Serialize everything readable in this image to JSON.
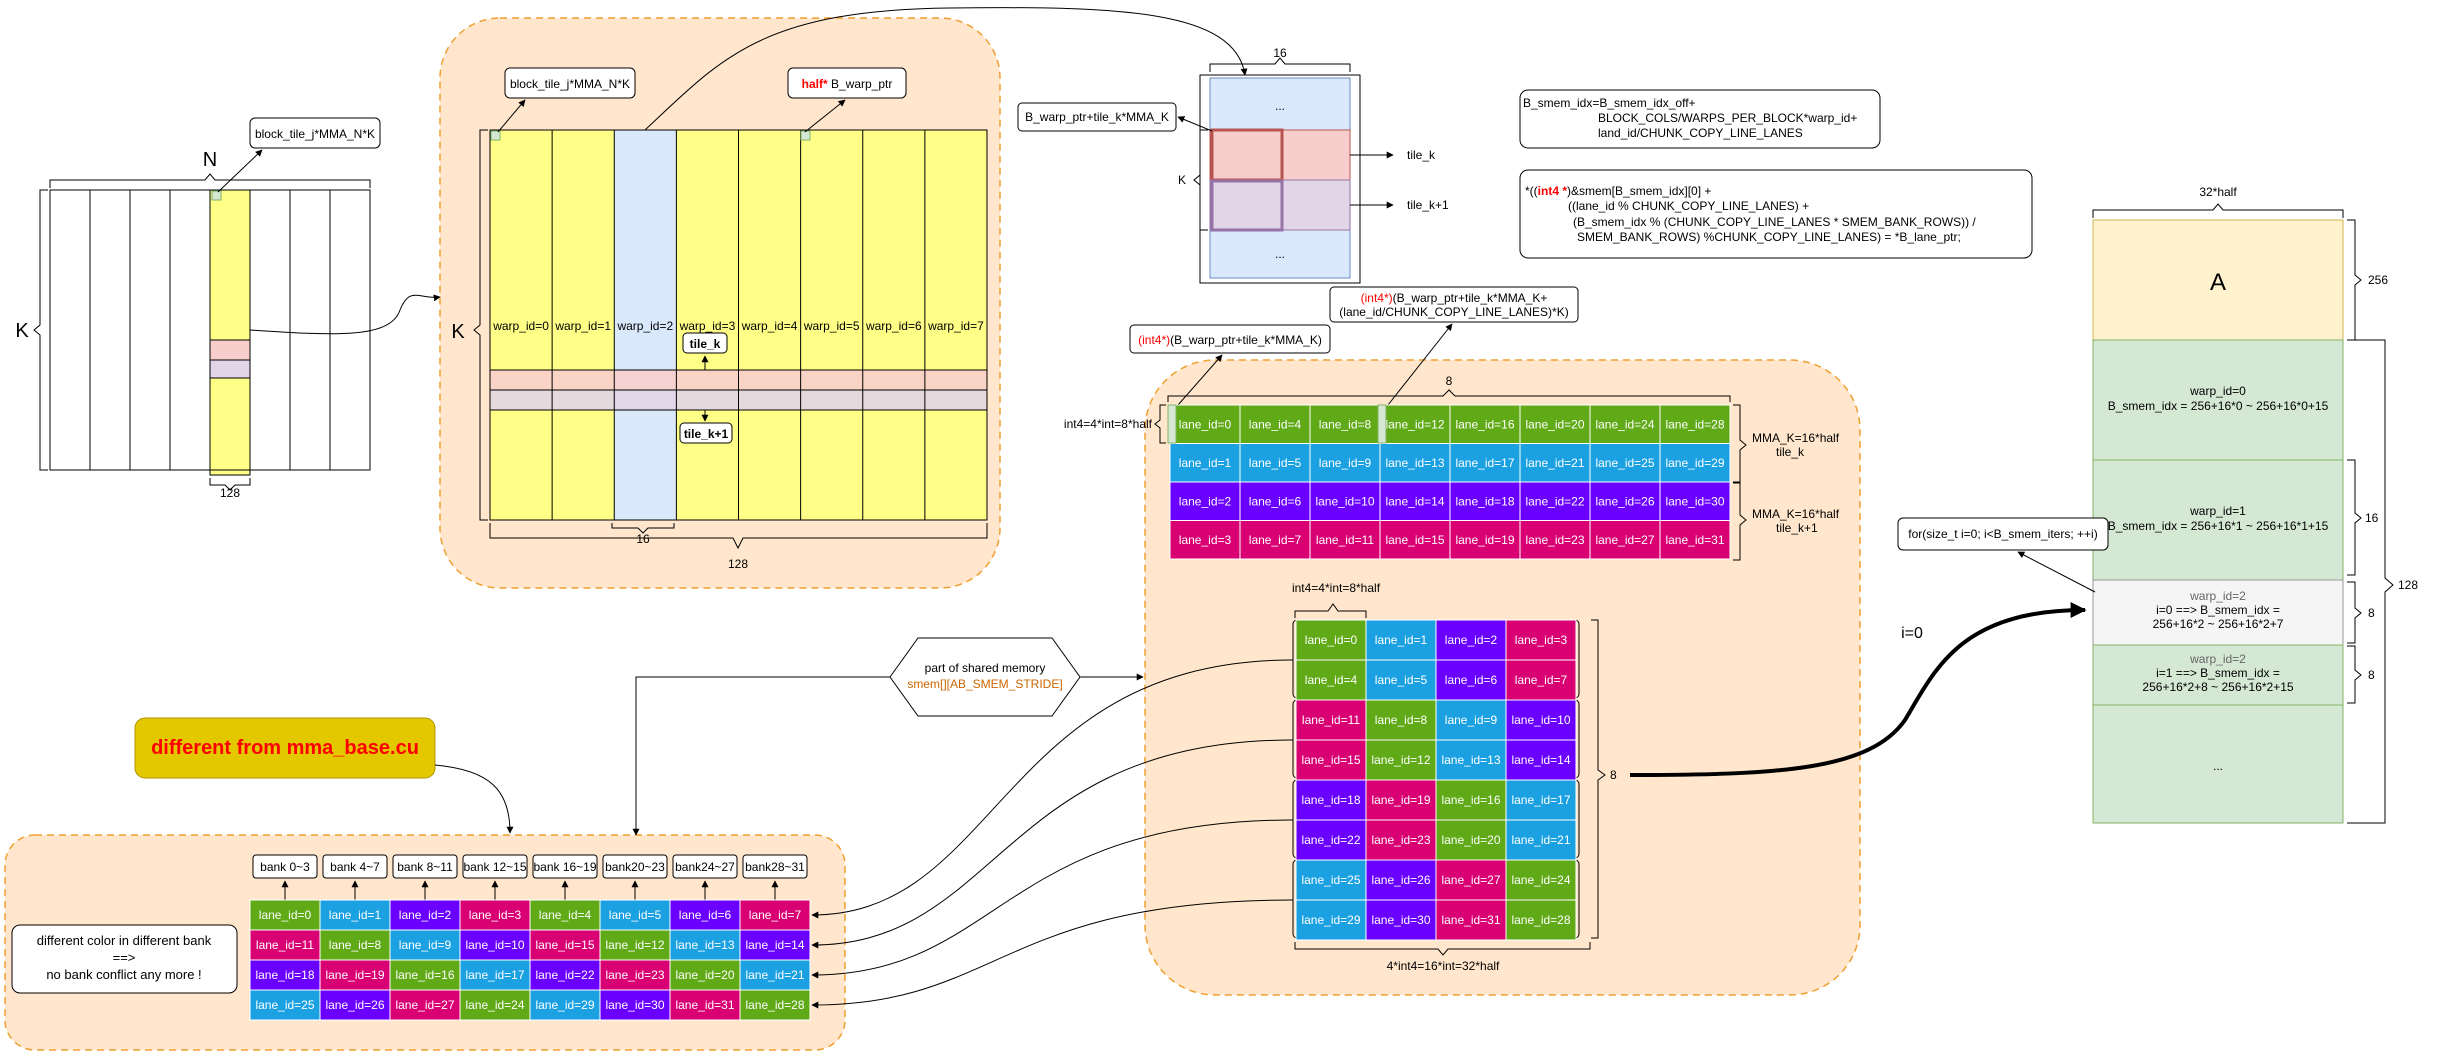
{
  "colors": {
    "green": "#60a917",
    "blue": "#1ba1e2",
    "purple": "#6a00ff",
    "magenta": "#d80073",
    "yellow": "#ffff88",
    "lightblue": "#dae8fc",
    "pink": "#f8cecc",
    "lavender": "#e1d5e7",
    "peach": "#ffe6cc",
    "peach_border": "#f0a030",
    "cream": "#fff2cc",
    "mint": "#d5e8d4",
    "gray": "#f5f5f5",
    "gold": "#e3c800",
    "red": "#ff0000",
    "orange_text": "#cc6600"
  },
  "global_tile": {
    "n_label": "N",
    "k_label": "K",
    "width_label": "128",
    "callout": "block_tile_j*MMA_N*K"
  },
  "warp_tile": {
    "k_label": "K",
    "callout_left": "block_tile_j*MMA_N*K",
    "callout_ptr_type": "half*",
    "callout_ptr_name": " B_warp_ptr",
    "warps": [
      "warp_id=0",
      "warp_id=1",
      "warp_id=2",
      "warp_id=3",
      "warp_id=4",
      "warp_id=5",
      "warp_id=6",
      "warp_id=7"
    ],
    "tile_k": "tile_k",
    "tile_k1": "tile_k+1",
    "col_width_label": "16",
    "total_width_label": "128"
  },
  "warp_column": {
    "top_label": "16",
    "k_label": "K",
    "dots_top": "...",
    "dots_bottom": "...",
    "ptr_label": "B_warp_ptr+tile_k*MMA_K",
    "tile_k": "tile_k",
    "tile_k1": "tile_k+1"
  },
  "code_boxes": {
    "idx_lines": [
      "B_smem_idx=B_smem_idx_off+",
      "BLOCK_COLS/WARPS_PER_BLOCK*warp_id+",
      "land_id/CHUNK_COPY_LINE_LANES"
    ],
    "copy_prefix": "*((",
    "copy_type": "int4 *",
    "copy_line1_rest": ")&smem[B_smem_idx][0] +",
    "copy_lines": [
      "((lane_id % CHUNK_COPY_LINE_LANES) +",
      "(B_smem_idx % (CHUNK_COPY_LINE_LANES * SMEM_BANK_ROWS)) /",
      "SMEM_BANK_ROWS) %CHUNK_COPY_LINE_LANES) = *B_lane_ptr;"
    ]
  },
  "lane_callouts": {
    "first_type": "(int4*)",
    "first_rest": "(B_warp_ptr+tile_k*MMA_K)",
    "second_type": "(int4*)",
    "second_rest": "(B_warp_ptr+tile_k*MMA_K+",
    "second_line2": "(lane_id/CHUNK_COPY_LINE_LANES)*K)"
  },
  "lane_grid": {
    "left_label": "int4=4*int=8*half",
    "top_label": "8",
    "right_label_1": [
      "MMA_K=16*half",
      "tile_k"
    ],
    "right_label_2": [
      "MMA_K=16*half",
      "tile_k+1"
    ],
    "rows": [
      [
        "lane_id=0",
        "lane_id=4",
        "lane_id=8",
        "lane_id=12",
        "lane_id=16",
        "lane_id=20",
        "lane_id=24",
        "lane_id=28"
      ],
      [
        "lane_id=1",
        "lane_id=5",
        "lane_id=9",
        "lane_id=13",
        "lane_id=17",
        "lane_id=21",
        "lane_id=25",
        "lane_id=29"
      ],
      [
        "lane_id=2",
        "lane_id=6",
        "lane_id=10",
        "lane_id=14",
        "lane_id=18",
        "lane_id=22",
        "lane_id=26",
        "lane_id=30"
      ],
      [
        "lane_id=3",
        "lane_id=7",
        "lane_id=11",
        "lane_id=15",
        "lane_id=19",
        "lane_id=23",
        "lane_id=27",
        "lane_id=31"
      ]
    ]
  },
  "smem_grid": {
    "top_label": "int4=4*int=8*half",
    "right_label": "8",
    "bottom_label": "4*int4=16*int=32*half",
    "arrow_label": "i=0",
    "rows": [
      [
        "lane_id=0",
        "lane_id=1",
        "lane_id=2",
        "lane_id=3"
      ],
      [
        "lane_id=4",
        "lane_id=5",
        "lane_id=6",
        "lane_id=7"
      ],
      [
        "lane_id=11",
        "lane_id=8",
        "lane_id=9",
        "lane_id=10"
      ],
      [
        "lane_id=15",
        "lane_id=12",
        "lane_id=13",
        "lane_id=14"
      ],
      [
        "lane_id=18",
        "lane_id=19",
        "lane_id=16",
        "lane_id=17"
      ],
      [
        "lane_id=22",
        "lane_id=23",
        "lane_id=20",
        "lane_id=21"
      ],
      [
        "lane_id=25",
        "lane_id=26",
        "lane_id=27",
        "lane_id=24"
      ],
      [
        "lane_id=29",
        "lane_id=30",
        "lane_id=31",
        "lane_id=28"
      ]
    ]
  },
  "smem_hex": {
    "line1": "part of shared memory",
    "line2": "smem[][AB_SMEM_STRIDE]"
  },
  "note_box": "different from mma_base.cu",
  "bank_panel": {
    "banks": [
      "bank 0~3",
      "bank 4~7",
      "bank 8~11",
      "bank 12~15",
      "bank 16~19",
      "bank20~23",
      "bank24~27",
      "bank28~31"
    ],
    "note_lines": [
      "different color in different bank",
      "==>",
      "no bank conflict any more !"
    ],
    "rows": [
      [
        "lane_id=0",
        "lane_id=1",
        "lane_id=2",
        "lane_id=3",
        "lane_id=4",
        "lane_id=5",
        "lane_id=6",
        "lane_id=7"
      ],
      [
        "lane_id=11",
        "lane_id=8",
        "lane_id=9",
        "lane_id=10",
        "lane_id=15",
        "lane_id=12",
        "lane_id=13",
        "lane_id=14"
      ],
      [
        "lane_id=18",
        "lane_id=19",
        "lane_id=16",
        "lane_id=17",
        "lane_id=22",
        "lane_id=23",
        "lane_id=20",
        "lane_id=21"
      ],
      [
        "lane_id=25",
        "lane_id=26",
        "lane_id=27",
        "lane_id=24",
        "lane_id=29",
        "lane_id=30",
        "lane_id=31",
        "lane_id=28"
      ]
    ]
  },
  "smem_layout": {
    "top_label": "32*half",
    "a_label": "A",
    "a_size": "256",
    "warp0": [
      "warp_id=0",
      "B_smem_idx = 256+16*0 ~ 256+16*0+15"
    ],
    "warp1": [
      "warp_id=1",
      "B_smem_idx = 256+16*1 ~ 256+16*1+15"
    ],
    "warp1_size": "16",
    "warp2a": [
      "warp_id=2",
      "i=0 ==> B_smem_idx =",
      "256+16*2 ~ 256+16*2+7"
    ],
    "warp2a_size": "8",
    "warp2b": [
      "warp_id=2",
      "i=1 ==> B_smem_idx =",
      "256+16*2+8 ~ 256+16*2+15"
    ],
    "warp2b_size": "8",
    "dots": "...",
    "total_size": "128",
    "loop_label": "for(size_t i=0; i<B_smem_iters; ++i)"
  }
}
